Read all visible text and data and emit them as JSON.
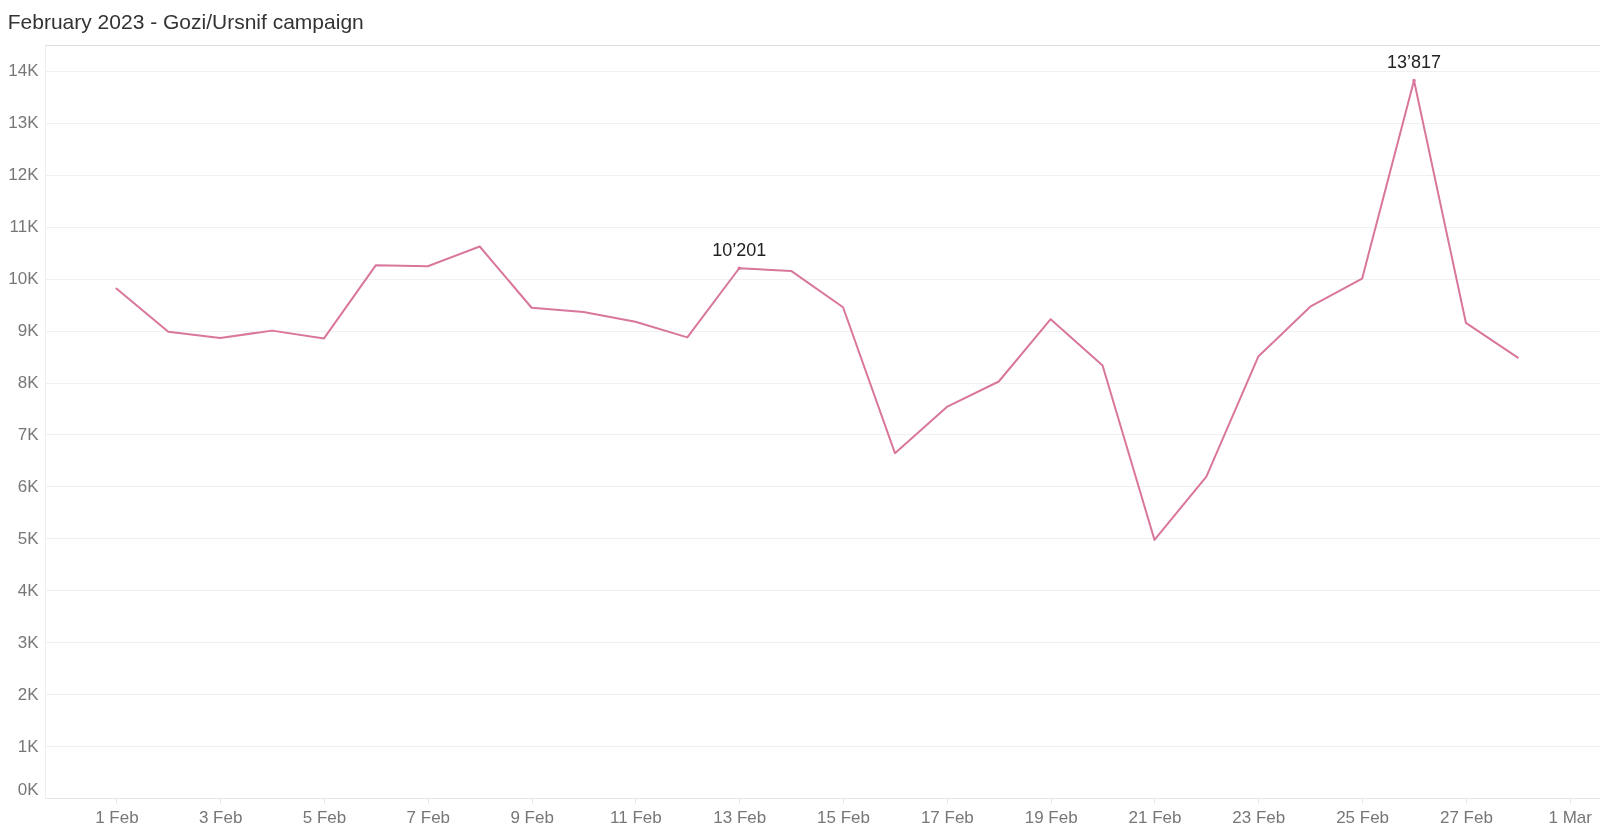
{
  "chart_data": {
    "type": "line",
    "title": "February 2023 - Gozi/Ursnif campaign",
    "x": [
      "2023-02-01",
      "2023-02-02",
      "2023-02-03",
      "2023-02-04",
      "2023-02-05",
      "2023-02-06",
      "2023-02-07",
      "2023-02-08",
      "2023-02-09",
      "2023-02-10",
      "2023-02-11",
      "2023-02-12",
      "2023-02-13",
      "2023-02-14",
      "2023-02-15",
      "2023-02-16",
      "2023-02-17",
      "2023-02-18",
      "2023-02-19",
      "2023-02-20",
      "2023-02-21",
      "2023-02-22",
      "2023-02-23",
      "2023-02-24",
      "2023-02-25",
      "2023-02-26",
      "2023-02-27",
      "2023-02-28"
    ],
    "series": [
      {
        "color": "#d9769c",
        "values": [
          9810,
          8980,
          8860,
          9000,
          8850,
          10260,
          10240,
          10620,
          9440,
          9360,
          9170,
          8870,
          10201,
          10150,
          9450,
          6640,
          7530,
          8020,
          9220,
          8330,
          4970,
          6190,
          8500,
          9460,
          10000,
          13817,
          9150,
          8480
        ]
      }
    ],
    "annotations": [
      {
        "text": "10’201",
        "x": "2023-02-13",
        "y": 10201
      },
      {
        "text": "13’817",
        "x": "2023-02-26",
        "y": 13817
      }
    ],
    "xlim": [
      "2023-01-30T15:00",
      "2023-03-01T14:00"
    ],
    "xticks": [
      {
        "value": "2023-02-01",
        "label": "1 Feb"
      },
      {
        "value": "2023-02-03",
        "label": "3 Feb"
      },
      {
        "value": "2023-02-05",
        "label": "5 Feb"
      },
      {
        "value": "2023-02-07",
        "label": "7 Feb"
      },
      {
        "value": "2023-02-09",
        "label": "9 Feb"
      },
      {
        "value": "2023-02-11",
        "label": "11 Feb"
      },
      {
        "value": "2023-02-13",
        "label": "13 Feb"
      },
      {
        "value": "2023-02-15",
        "label": "15 Feb"
      },
      {
        "value": "2023-02-17",
        "label": "17 Feb"
      },
      {
        "value": "2023-02-19",
        "label": "19 Feb"
      },
      {
        "value": "2023-02-21",
        "label": "21 Feb"
      },
      {
        "value": "2023-02-23",
        "label": "23 Feb"
      },
      {
        "value": "2023-02-25",
        "label": "25 Feb"
      },
      {
        "value": "2023-02-27",
        "label": "27 Feb"
      },
      {
        "value": "2023-03-01",
        "label": "1 Mar"
      }
    ],
    "ylim": [
      0,
      14500
    ],
    "yticks": [
      {
        "value": 0,
        "label": "0K"
      },
      {
        "value": 1000,
        "label": "1K"
      },
      {
        "value": 2000,
        "label": "2K"
      },
      {
        "value": 3000,
        "label": "3K"
      },
      {
        "value": 4000,
        "label": "4K"
      },
      {
        "value": 5000,
        "label": "5K"
      },
      {
        "value": 6000,
        "label": "6K"
      },
      {
        "value": 7000,
        "label": "7K"
      },
      {
        "value": 8000,
        "label": "8K"
      },
      {
        "value": 9000,
        "label": "9K"
      },
      {
        "value": 10000,
        "label": "10K"
      },
      {
        "value": 11000,
        "label": "11K"
      },
      {
        "value": 12000,
        "label": "12K"
      },
      {
        "value": 13000,
        "label": "13K"
      },
      {
        "value": 14000,
        "label": "14K"
      }
    ],
    "grid": "y",
    "marker": "none",
    "line_style": "solid"
  }
}
